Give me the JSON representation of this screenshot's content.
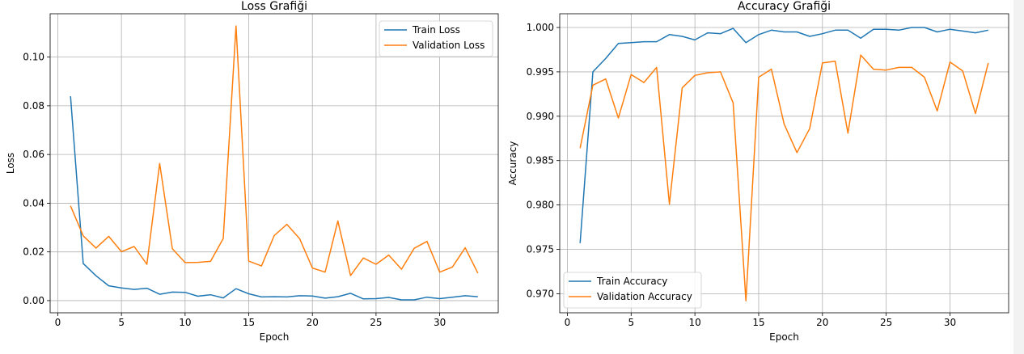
{
  "chart_data": [
    {
      "type": "line",
      "title": "Loss Grafiği",
      "xlabel": "Epoch",
      "ylabel": "Loss",
      "xlim": [
        -0.6,
        34.6
      ],
      "ylim": [
        -0.005,
        0.1178
      ],
      "x_ticks": [
        0,
        5,
        10,
        15,
        20,
        25,
        30
      ],
      "x_tick_labels": [
        "0",
        "5",
        "10",
        "15",
        "20",
        "25",
        "30"
      ],
      "y_ticks": [
        0.0,
        0.02,
        0.04,
        0.06,
        0.08,
        0.1
      ],
      "y_tick_labels": [
        "0.00",
        "0.02",
        "0.04",
        "0.06",
        "0.08",
        "0.10"
      ],
      "grid": true,
      "legend": "upper right",
      "x": [
        1,
        2,
        3,
        4,
        5,
        6,
        7,
        8,
        9,
        10,
        11,
        12,
        13,
        14,
        15,
        16,
        17,
        18,
        19,
        20,
        21,
        22,
        23,
        24,
        25,
        26,
        27,
        28,
        29,
        30,
        31,
        32,
        33
      ],
      "series": [
        {
          "name": "Train Loss",
          "color": "#1f77b4",
          "values": [
            0.0839,
            0.0152,
            0.0102,
            0.0061,
            0.0052,
            0.0046,
            0.0051,
            0.0026,
            0.0035,
            0.0034,
            0.0018,
            0.0024,
            0.0011,
            0.0049,
            0.0028,
            0.0015,
            0.0016,
            0.0015,
            0.002,
            0.0019,
            0.001,
            0.0016,
            0.003,
            0.0007,
            0.0008,
            0.0013,
            0.0003,
            0.0003,
            0.0014,
            0.0008,
            0.0014,
            0.002,
            0.0016
          ]
        },
        {
          "name": "Validation Loss",
          "color": "#ff7f0e",
          "values": [
            0.0389,
            0.0266,
            0.0216,
            0.0264,
            0.0201,
            0.0222,
            0.0149,
            0.0563,
            0.0213,
            0.0156,
            0.0157,
            0.0161,
            0.0255,
            0.1128,
            0.0162,
            0.0142,
            0.0267,
            0.0313,
            0.0254,
            0.0134,
            0.0117,
            0.0327,
            0.0103,
            0.0175,
            0.0149,
            0.0187,
            0.0129,
            0.0215,
            0.0243,
            0.0117,
            0.0138,
            0.0217,
            0.0113
          ]
        }
      ]
    },
    {
      "type": "line",
      "title": "Accuracy Grafiği",
      "xlabel": "Epoch",
      "ylabel": "Accuracy",
      "xlim": [
        -0.6,
        34.6
      ],
      "ylim": [
        0.96785,
        1.00155
      ],
      "x_ticks": [
        0,
        5,
        10,
        15,
        20,
        25,
        30
      ],
      "x_tick_labels": [
        "0",
        "5",
        "10",
        "15",
        "20",
        "25",
        "30"
      ],
      "y_ticks": [
        0.97,
        0.975,
        0.98,
        0.985,
        0.99,
        0.995,
        1.0
      ],
      "y_tick_labels": [
        "0.970",
        "0.975",
        "0.980",
        "0.985",
        "0.990",
        "0.995",
        "1.000"
      ],
      "grid": true,
      "legend": "lower left",
      "x": [
        1,
        2,
        3,
        4,
        5,
        6,
        7,
        8,
        9,
        10,
        11,
        12,
        13,
        14,
        15,
        16,
        17,
        18,
        19,
        20,
        21,
        22,
        23,
        24,
        25,
        26,
        27,
        28,
        29,
        30,
        31,
        32,
        33
      ],
      "series": [
        {
          "name": "Train Accuracy",
          "color": "#1f77b4",
          "values": [
            0.9757,
            0.995,
            0.9965,
            0.9982,
            0.9983,
            0.9984,
            0.9984,
            0.9992,
            0.999,
            0.9986,
            0.9994,
            0.9993,
            0.9999,
            0.9983,
            0.9992,
            0.9997,
            0.9995,
            0.9995,
            0.999,
            0.9993,
            0.9997,
            0.9997,
            0.9988,
            0.9998,
            0.9998,
            0.9997,
            1.0,
            1.0,
            0.9995,
            0.9998,
            0.9996,
            0.9994,
            0.9997
          ]
        },
        {
          "name": "Validation Accuracy",
          "color": "#ff7f0e",
          "values": [
            0.9864,
            0.9935,
            0.9942,
            0.9898,
            0.9947,
            0.9938,
            0.9955,
            0.9801,
            0.9932,
            0.9946,
            0.9949,
            0.995,
            0.9915,
            0.9692,
            0.9944,
            0.9953,
            0.9891,
            0.9859,
            0.9886,
            0.996,
            0.9962,
            0.9881,
            0.9969,
            0.9953,
            0.9952,
            0.9955,
            0.9955,
            0.9944,
            0.9906,
            0.9961,
            0.9951,
            0.9903,
            0.996
          ]
        }
      ]
    }
  ]
}
